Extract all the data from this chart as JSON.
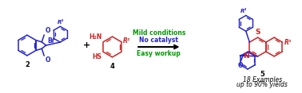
{
  "background_color": "#ffffff",
  "figsize": [
    3.78,
    1.17
  ],
  "dpi": 100,
  "compound2_label": "2",
  "compound4_label": "4",
  "compound5_label": "5",
  "plus_sign": "+",
  "arrow_label_line1": "Mild conditions",
  "arrow_label_line2": "No catalyst",
  "arrow_label_line3": "Easy workup",
  "bottom_text_line1": "18 Examples",
  "bottom_text_line2": "up to 90% yields",
  "arrow_color": "#000000",
  "blue_color": "#2222cc",
  "red_color": "#cc2222",
  "green_color": "#009900",
  "blue2_color": "#2244cc",
  "compound2_Br": "Br",
  "compound2_R1": "R¹",
  "compound2_O1": "O",
  "compound2_O2": "O",
  "compound4_NH2": "H₂N",
  "compound4_SH": "HS",
  "compound4_R2": "R²",
  "compound5_S": "S",
  "compound5_N": "N",
  "compound5_O": "O",
  "compound5_R1": "R¹",
  "compound5_R2": "R²"
}
